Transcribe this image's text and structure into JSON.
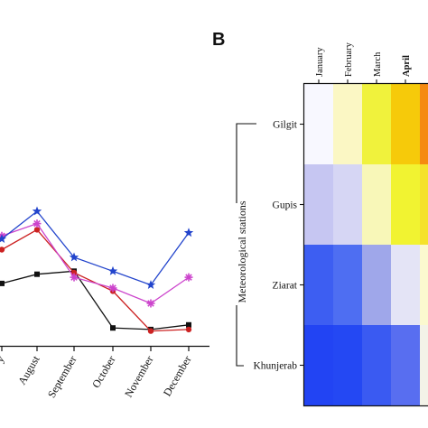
{
  "chart_data": [
    {
      "type": "line",
      "panel": "A",
      "categories": [
        "July",
        "August",
        "September",
        "October",
        "November",
        "December"
      ],
      "visible_category_labels": [
        "y",
        "August",
        "September",
        "October",
        "November",
        "December"
      ],
      "series": [
        {
          "color": "#2244cc",
          "marker": "star",
          "values": [
            0.62,
            0.8,
            0.5,
            0.41,
            0.32,
            0.66
          ]
        },
        {
          "color": "#cc44cc",
          "marker": "asterisk",
          "values": [
            0.64,
            0.72,
            0.37,
            0.3,
            0.2,
            0.37
          ]
        },
        {
          "color": "#cc2222",
          "marker": "circle",
          "values": [
            0.55,
            0.68,
            0.4,
            0.28,
            0.02,
            0.03
          ]
        },
        {
          "color": "#111111",
          "marker": "square",
          "values": [
            0.33,
            0.39,
            0.41,
            0.04,
            0.03,
            0.06
          ]
        }
      ]
    },
    {
      "type": "heatmap",
      "panel": "B",
      "panel_letter": "B",
      "columns": [
        "January",
        "February",
        "March",
        "April",
        "May"
      ],
      "visible_column_labels": [
        "January",
        "February",
        "March",
        "April",
        "M"
      ],
      "rows": [
        "Gilgit",
        "Gupis",
        "Ziarat",
        "Khunjerab"
      ],
      "row_group_label": "Meteorological stations",
      "cell_colors": [
        [
          "#f8f8ff",
          "#fbf7c4",
          "#f0f23c",
          "#f6ca0a",
          "#f58a10"
        ],
        [
          "#c6c6f2",
          "#d6d6f4",
          "#f8f7b8",
          "#f1f331",
          "#f5e22c"
        ],
        [
          "#3d5ef2",
          "#4e6ef2",
          "#9fa7ea",
          "#e4e4f6",
          "#fbf9cf"
        ],
        [
          "#2244f3",
          "#2448f3",
          "#3a5af2",
          "#586ef0",
          "#f3f3e8"
        ]
      ]
    }
  ]
}
